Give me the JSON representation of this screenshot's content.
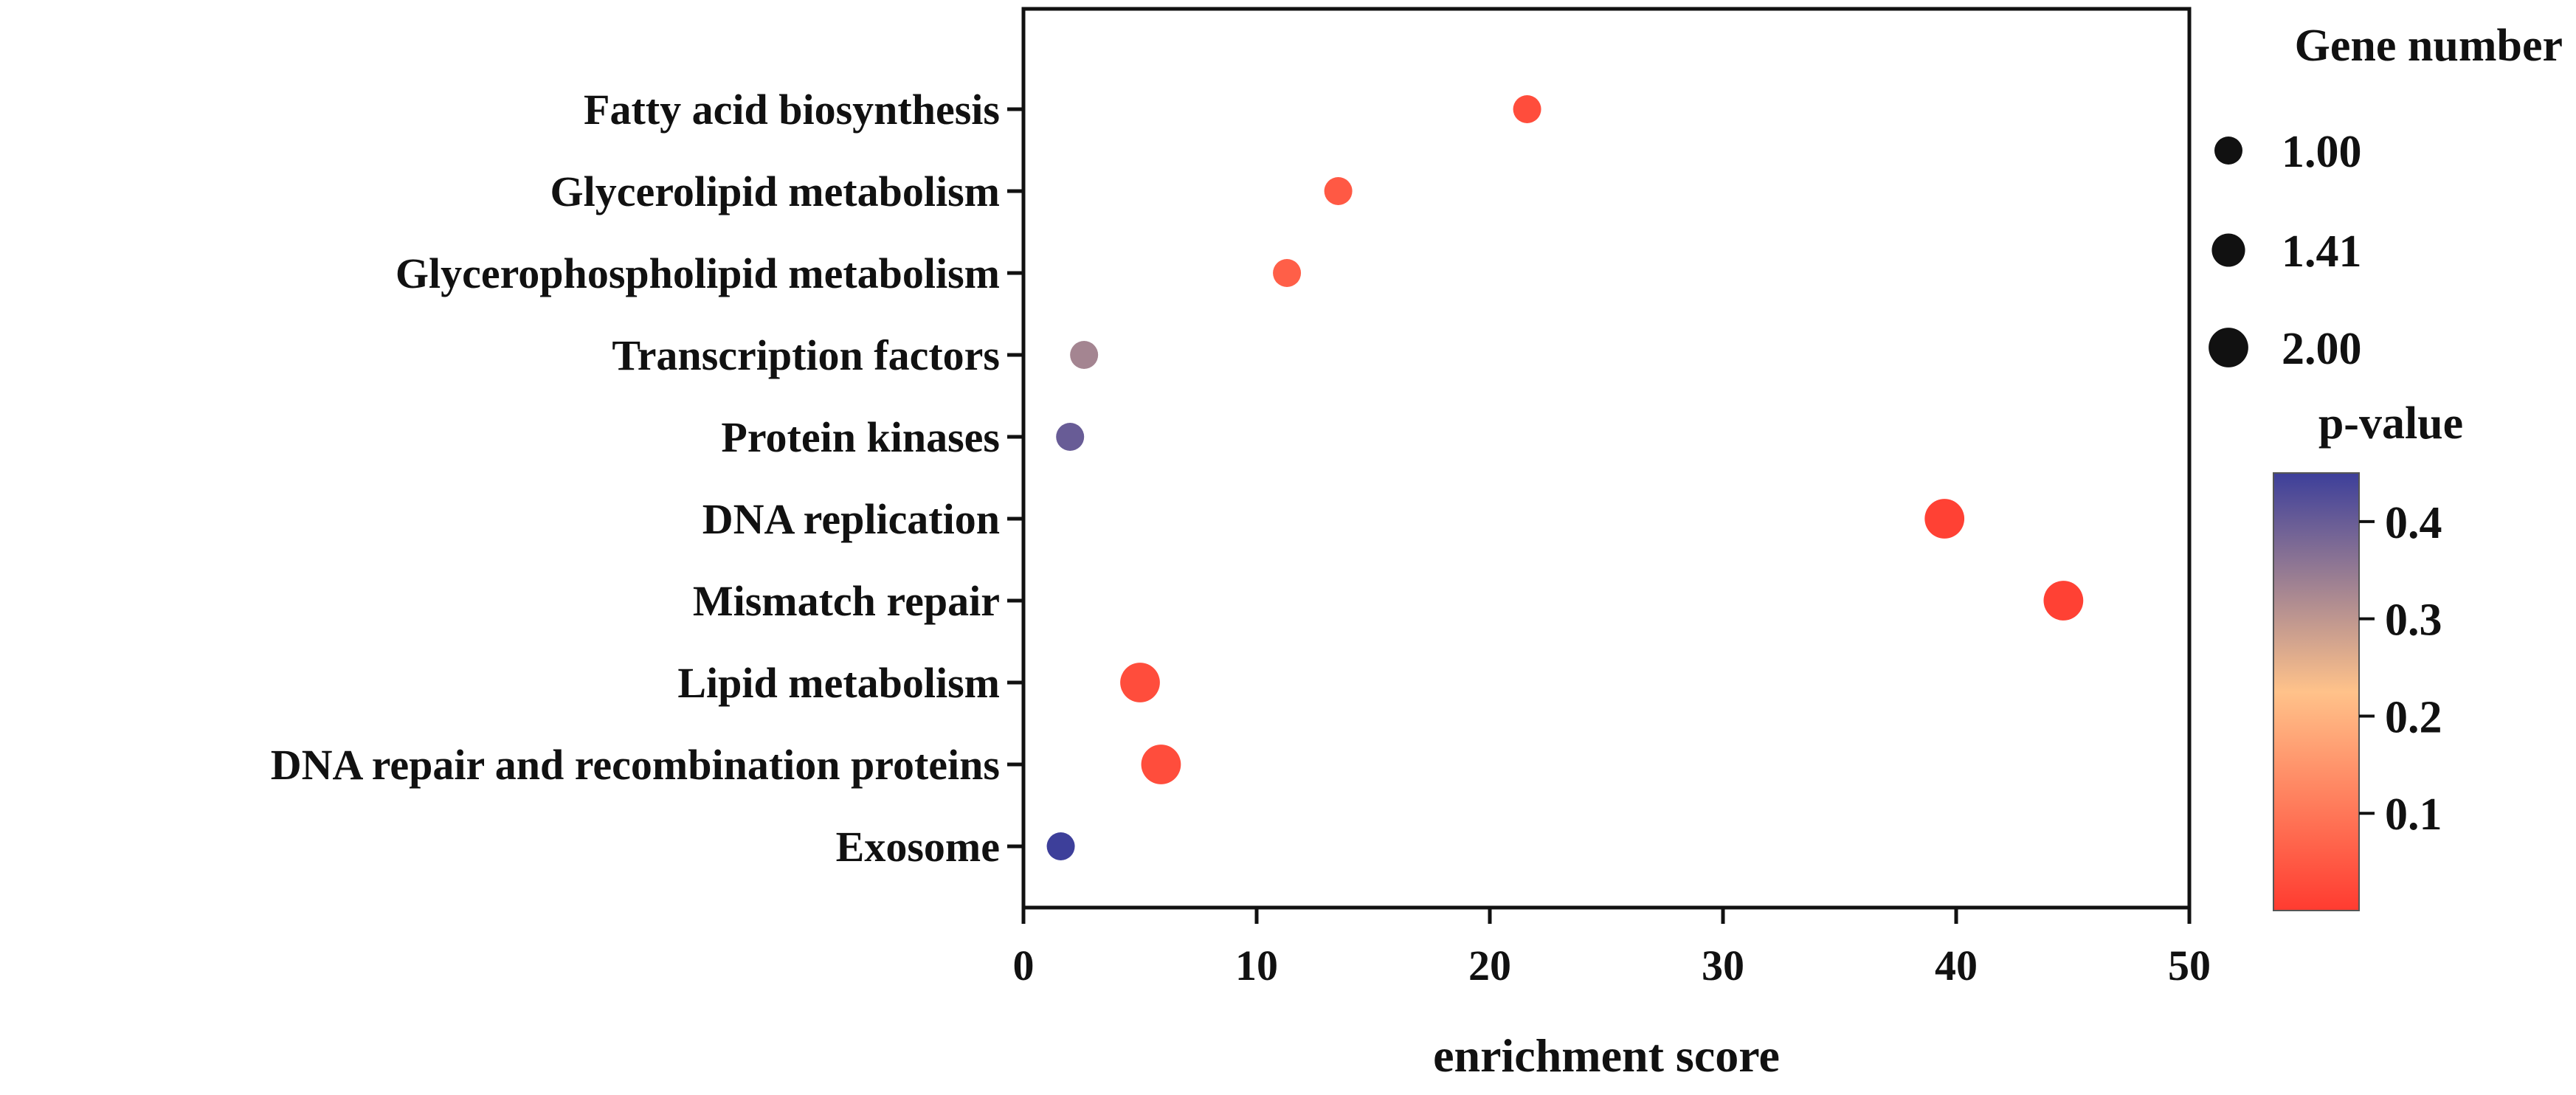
{
  "chart_data": {
    "type": "scatter",
    "title": "",
    "xlabel": "enrichment score",
    "ylabel": "",
    "xlim": [
      0,
      50
    ],
    "xticks": [
      "0",
      "10",
      "20",
      "30",
      "40",
      "50"
    ],
    "categories": [
      "Fatty acid biosynthesis",
      "Glycerolipid metabolism",
      "Glycerophospholipid metabolism",
      "Transcription factors",
      "Protein kinases",
      "DNA replication",
      "Mismatch repair",
      "Lipid metabolism",
      "DNA repair and recombination proteins",
      "Exosome"
    ],
    "points": [
      {
        "category": "Fatty acid biosynthesis",
        "x": 21.6,
        "gene_number": 1.0,
        "p_value": 0.03
      },
      {
        "category": "Glycerolipid metabolism",
        "x": 13.5,
        "gene_number": 1.0,
        "p_value": 0.05
      },
      {
        "category": "Glycerophospholipid metabolism",
        "x": 11.3,
        "gene_number": 1.0,
        "p_value": 0.06
      },
      {
        "category": "Transcription factors",
        "x": 2.6,
        "gene_number": 1.0,
        "p_value": 0.33
      },
      {
        "category": "Protein kinases",
        "x": 2.0,
        "gene_number": 1.0,
        "p_value": 0.4
      },
      {
        "category": "DNA replication",
        "x": 39.5,
        "gene_number": 2.0,
        "p_value": 0.01
      },
      {
        "category": "Mismatch repair",
        "x": 44.6,
        "gene_number": 2.0,
        "p_value": 0.01
      },
      {
        "category": "Lipid metabolism",
        "x": 5.0,
        "gene_number": 2.0,
        "p_value": 0.03
      },
      {
        "category": "DNA repair and recombination proteins",
        "x": 5.9,
        "gene_number": 2.0,
        "p_value": 0.03
      },
      {
        "category": "Exosome",
        "x": 1.6,
        "gene_number": 1.0,
        "p_value": 0.45
      }
    ],
    "size_legend": {
      "title": "Gene number",
      "entries": [
        {
          "label": "1.00",
          "value": 1.0
        },
        {
          "label": "1.41",
          "value": 1.41
        },
        {
          "label": "2.00",
          "value": 2.0
        }
      ]
    },
    "color_legend": {
      "title": "p-value",
      "ticks": [
        {
          "label": "0.4",
          "value": 0.4
        },
        {
          "label": "0.3",
          "value": 0.3
        },
        {
          "label": "0.2",
          "value": 0.2
        },
        {
          "label": "0.1",
          "value": 0.1
        }
      ],
      "range": [
        0.0,
        0.45
      ],
      "colors": {
        "low": "#ff3b30",
        "mid": "#ffc28a",
        "high": "#3d3f9a"
      }
    }
  }
}
